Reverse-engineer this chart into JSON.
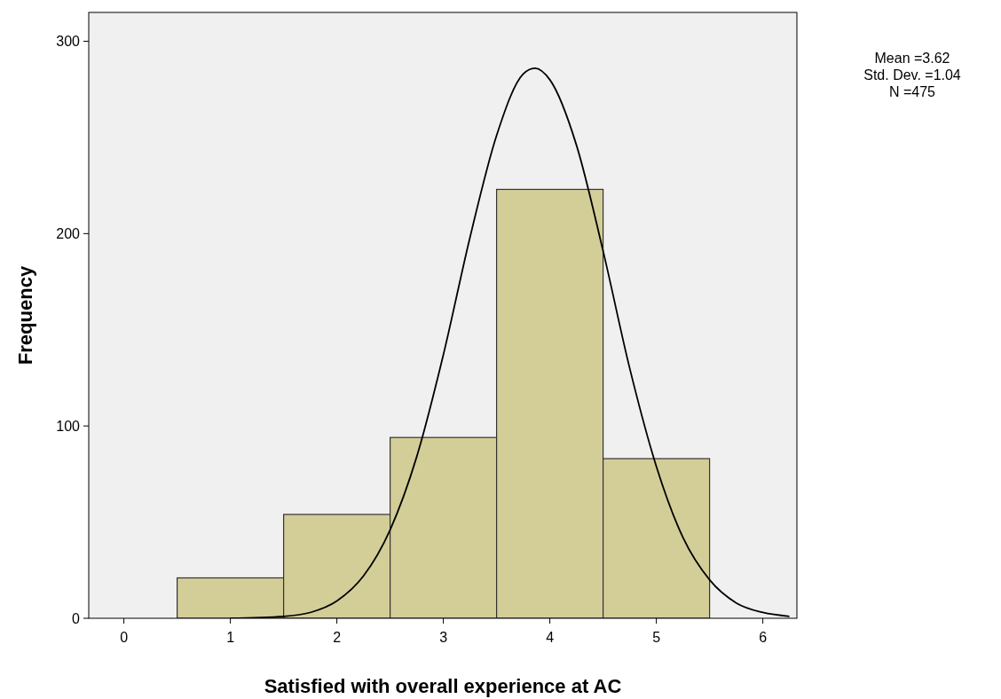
{
  "chart_data": {
    "type": "histogram",
    "xlabel": "Satisfied with overall experience at AC",
    "ylabel": "Frequency",
    "annotations": [
      "Mean =3.62",
      "Std. Dev. =1.04",
      "N =475"
    ],
    "bins": [
      0.5,
      1.5,
      2.5,
      3.5,
      4.5,
      5.5
    ],
    "xlim": [
      -0.33,
      6.32
    ],
    "xticks": [
      0,
      1,
      2,
      3,
      4,
      5,
      6
    ],
    "ylim": [
      0,
      315
    ],
    "yticks": [
      0,
      100,
      200,
      300
    ],
    "grid": false,
    "series": [
      {
        "type": "histogram",
        "color": "#d3ce98",
        "values": [
          21,
          54,
          94,
          223,
          83
        ]
      },
      {
        "type": "line",
        "color": "#000000",
        "x": [
          1.0,
          1.5,
          1.75,
          2.0,
          2.25,
          2.5,
          2.75,
          3.0,
          3.25,
          3.5,
          3.75,
          3.86,
          4.0,
          4.25,
          4.5,
          4.75,
          5.0,
          5.25,
          5.5,
          5.75,
          6.0,
          6.25
        ],
        "values": [
          0,
          1,
          3,
          9,
          22,
          46,
          84,
          137,
          198,
          251,
          283,
          286,
          280,
          246,
          191,
          130,
          79,
          42,
          20,
          8,
          3,
          1
        ]
      }
    ]
  }
}
